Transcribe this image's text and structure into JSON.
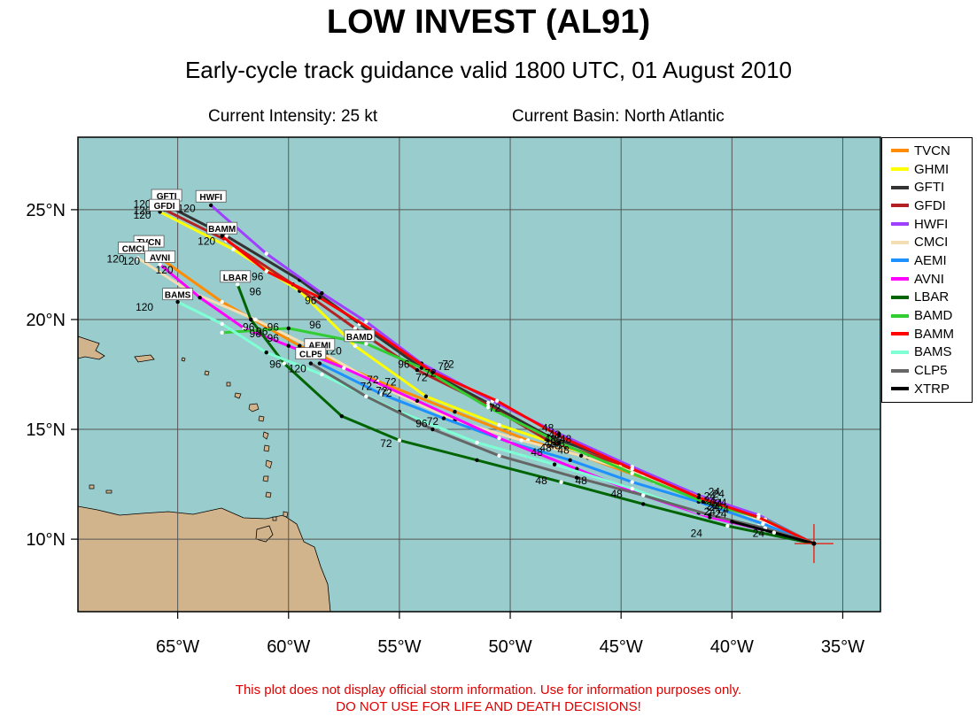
{
  "header": {
    "title": "LOW INVEST (AL91)",
    "subtitle": "Early-cycle track guidance valid 1800 UTC, 01 August 2010",
    "current_intensity": "Current Intensity: 25 kt",
    "current_basin": "Current Basin: North Atlantic"
  },
  "disclaimer": {
    "line1": "This plot does not display official storm information. Use for information purposes only.",
    "line2": "DO NOT USE FOR LIFE AND DEATH DECISIONS!"
  },
  "map": {
    "lon_range": [
      -69.5,
      -33.3
    ],
    "lat_range": [
      6.7,
      28.3
    ],
    "ocean_color": "#99cccc",
    "land_color": "#d2b48c",
    "x_ticks": [
      {
        "lon": -65,
        "label": "65°W"
      },
      {
        "lon": -60,
        "label": "60°W"
      },
      {
        "lon": -55,
        "label": "55°W"
      },
      {
        "lon": -50,
        "label": "50°W"
      },
      {
        "lon": -45,
        "label": "45°W"
      },
      {
        "lon": -40,
        "label": "40°W"
      },
      {
        "lon": -35,
        "label": "35°W"
      }
    ],
    "y_ticks": [
      {
        "lat": 10,
        "label": "10°N"
      },
      {
        "lat": 15,
        "label": "15°N"
      },
      {
        "lat": 20,
        "label": "20°N"
      },
      {
        "lat": 25,
        "label": "25°N"
      }
    ],
    "storm_position": {
      "lon": -36.3,
      "lat": 9.8
    }
  },
  "models": [
    {
      "name": "TVCN",
      "color": "#ff8c00",
      "label": "TVCN",
      "track": [
        [
          -36.3,
          9.8
        ],
        [
          -38.5,
          10.9
        ],
        [
          -41.0,
          11.6
        ],
        [
          -43.5,
          12.6
        ],
        [
          -46.5,
          13.7
        ],
        [
          -49.2,
          14.5
        ],
        [
          -52.5,
          15.8
        ],
        [
          -56.0,
          17.2
        ],
        [
          -59.5,
          18.8
        ],
        [
          -63.0,
          20.8
        ],
        [
          -65.8,
          22.8
        ]
      ],
      "hour_labels": [
        {
          "lon": -40.9,
          "lat": 11.35,
          "text": "24"
        },
        {
          "lon": -47.6,
          "lat": 13.9,
          "text": "48"
        },
        {
          "lon": -56.5,
          "lat": 16.8,
          "text": "72"
        },
        {
          "lon": -61.2,
          "lat": 19.3,
          "text": "96"
        },
        {
          "lon": -67.8,
          "lat": 22.6,
          "text": "120"
        }
      ]
    },
    {
      "name": "GHMI",
      "color": "#ffff00",
      "label": "GHMI",
      "track": [
        [
          -36.3,
          9.8
        ],
        [
          -38.8,
          11.0
        ],
        [
          -41.5,
          11.9
        ],
        [
          -44.5,
          13.2
        ],
        [
          -47.5,
          14.2
        ],
        [
          -50.5,
          15.2
        ],
        [
          -53.8,
          16.5
        ],
        [
          -57.0,
          18.8
        ],
        [
          -59.5,
          21.3
        ],
        [
          -62.5,
          23.2
        ],
        [
          -65.8,
          24.9
        ]
      ],
      "hour_labels": [
        {
          "lon": -40.4,
          "lat": 11.2,
          "text": "24"
        },
        {
          "lon": -48.2,
          "lat": 14.4,
          "text": "48"
        },
        {
          "lon": -55.4,
          "lat": 17.0,
          "text": "72"
        },
        {
          "lon": -61.5,
          "lat": 21.1,
          "text": "96"
        },
        {
          "lon": -66.6,
          "lat": 24.8,
          "text": "120"
        }
      ]
    },
    {
      "name": "GFTI",
      "color": "#333333",
      "label": "GFTI",
      "track": [
        [
          -36.3,
          9.8
        ],
        [
          -39.0,
          11.1
        ],
        [
          -41.8,
          12.1
        ],
        [
          -45.0,
          13.5
        ],
        [
          -48.3,
          14.7
        ],
        [
          -51.0,
          16.2
        ],
        [
          -54.0,
          17.8
        ],
        [
          -56.8,
          19.8
        ],
        [
          -59.5,
          21.8
        ],
        [
          -62.8,
          23.8
        ],
        [
          -65.5,
          25.2
        ]
      ],
      "hour_labels": [
        {
          "lon": -40.8,
          "lat": 12.0,
          "text": "24"
        },
        {
          "lon": -48.3,
          "lat": 14.9,
          "text": "48"
        },
        {
          "lon": -53.0,
          "lat": 17.7,
          "text": "72"
        },
        {
          "lon": -58.8,
          "lat": 19.6,
          "text": "96"
        },
        {
          "lon": -66.6,
          "lat": 25.1,
          "text": "120"
        }
      ]
    },
    {
      "name": "GFDI",
      "color": "#b22222",
      "label": "GFDI",
      "track": [
        [
          -36.3,
          9.8
        ],
        [
          -39.0,
          11.0
        ],
        [
          -41.8,
          12.0
        ],
        [
          -45.0,
          13.4
        ],
        [
          -48.3,
          14.5
        ],
        [
          -51.0,
          16.1
        ],
        [
          -54.2,
          17.7
        ],
        [
          -57.0,
          19.6
        ],
        [
          -59.8,
          21.6
        ],
        [
          -62.8,
          23.6
        ],
        [
          -65.6,
          25.0
        ]
      ],
      "hour_labels": [
        {
          "lon": -41.0,
          "lat": 11.8,
          "text": "24"
        },
        {
          "lon": -48.0,
          "lat": 14.6,
          "text": "48"
        },
        {
          "lon": -53.6,
          "lat": 17.4,
          "text": "72"
        },
        {
          "lon": -61.4,
          "lat": 21.8,
          "text": "96"
        },
        {
          "lon": -66.6,
          "lat": 24.6,
          "text": "120"
        }
      ]
    },
    {
      "name": "HWFI",
      "color": "#a040ff",
      "label": "HWFI",
      "track": [
        [
          -36.3,
          9.8
        ],
        [
          -38.8,
          11.1
        ],
        [
          -41.5,
          12.0
        ],
        [
          -44.5,
          13.3
        ],
        [
          -47.8,
          14.8
        ],
        [
          -50.8,
          16.3
        ],
        [
          -54.0,
          18.0
        ],
        [
          -56.5,
          19.9
        ],
        [
          -58.5,
          21.2
        ],
        [
          -61.0,
          23.0
        ],
        [
          -63.5,
          25.2
        ]
      ],
      "hour_labels": [
        {
          "lon": -40.6,
          "lat": 11.9,
          "text": "24"
        },
        {
          "lon": -47.5,
          "lat": 14.4,
          "text": "48"
        },
        {
          "lon": -52.8,
          "lat": 17.8,
          "text": "72"
        },
        {
          "lon": -54.8,
          "lat": 17.8,
          "text": "96"
        },
        {
          "lon": -64.6,
          "lat": 24.9,
          "text": "120"
        }
      ]
    },
    {
      "name": "CMCI",
      "color": "#f5deb3",
      "label": "CMCI",
      "track": [
        [
          -36.3,
          9.8
        ],
        [
          -38.5,
          10.8
        ],
        [
          -41.2,
          11.8
        ],
        [
          -44.0,
          12.9
        ],
        [
          -46.8,
          13.8
        ],
        [
          -49.5,
          14.5
        ],
        [
          -52.5,
          15.4
        ],
        [
          -55.5,
          16.8
        ],
        [
          -58.5,
          18.5
        ],
        [
          -61.5,
          20.0
        ],
        [
          -64.5,
          21.3
        ],
        [
          -66.8,
          22.8
        ]
      ],
      "hour_labels": [
        {
          "lon": -40.7,
          "lat": 11.5,
          "text": "24"
        },
        {
          "lon": -48.2,
          "lat": 14.2,
          "text": "48"
        },
        {
          "lon": -56.2,
          "lat": 17.1,
          "text": "72"
        },
        {
          "lon": -60.7,
          "lat": 19.5,
          "text": "96"
        },
        {
          "lon": -67.1,
          "lat": 22.5,
          "text": "120"
        }
      ]
    },
    {
      "name": "AEMI",
      "color": "#1e90ff",
      "label": "AEMI",
      "track": [
        [
          -36.3,
          9.8
        ],
        [
          -38.6,
          10.7
        ],
        [
          -41.5,
          11.7
        ],
        [
          -44.5,
          12.6
        ],
        [
          -47.3,
          13.6
        ],
        [
          -50.0,
          14.4
        ],
        [
          -53.0,
          15.5
        ],
        [
          -55.8,
          16.6
        ],
        [
          -58.6,
          18.0
        ]
      ],
      "hour_labels": [
        {
          "lon": -40.8,
          "lat": 11.3,
          "text": "24"
        },
        {
          "lon": -48.8,
          "lat": 13.8,
          "text": "48"
        },
        {
          "lon": -55.6,
          "lat": 16.5,
          "text": "72"
        }
      ]
    },
    {
      "name": "AVNI",
      "color": "#ff00ff",
      "label": "AVNI",
      "track": [
        [
          -36.3,
          9.8
        ],
        [
          -38.5,
          10.4
        ],
        [
          -41.0,
          11.0
        ],
        [
          -44.0,
          12.0
        ],
        [
          -47.0,
          13.2
        ],
        [
          -50.5,
          14.6
        ],
        [
          -54.2,
          16.3
        ],
        [
          -57.5,
          17.8
        ],
        [
          -60.0,
          18.8
        ],
        [
          -62.0,
          19.6
        ],
        [
          -64.0,
          21.0
        ],
        [
          -65.8,
          22.5
        ]
      ],
      "hour_labels": [
        {
          "lon": -41.0,
          "lat": 11.1,
          "text": "24"
        },
        {
          "lon": -48.4,
          "lat": 14.0,
          "text": "48"
        },
        {
          "lon": -55.8,
          "lat": 16.6,
          "text": "72"
        },
        {
          "lon": -61.8,
          "lat": 19.5,
          "text": "96"
        },
        {
          "lon": -65.6,
          "lat": 22.1,
          "text": "120"
        }
      ]
    },
    {
      "name": "LBAR",
      "color": "#006400",
      "label": "LBAR",
      "track": [
        [
          -36.3,
          9.8
        ],
        [
          -40.2,
          10.6
        ],
        [
          -44.0,
          11.6
        ],
        [
          -47.7,
          12.6
        ],
        [
          -51.5,
          13.6
        ],
        [
          -55.0,
          14.5
        ],
        [
          -57.6,
          15.6
        ],
        [
          -60.2,
          18.0
        ],
        [
          -61.7,
          20.0
        ],
        [
          -62.3,
          21.6
        ]
      ],
      "hour_labels": [
        {
          "lon": -41.6,
          "lat": 10.1,
          "text": "24"
        },
        {
          "lon": -48.6,
          "lat": 12.5,
          "text": "48"
        },
        {
          "lon": -55.6,
          "lat": 14.2,
          "text": "72"
        },
        {
          "lon": -60.6,
          "lat": 17.8,
          "text": "96"
        }
      ]
    },
    {
      "name": "BAMD",
      "color": "#32cd32",
      "label": "BAMD",
      "track": [
        [
          -36.3,
          9.8
        ],
        [
          -38.5,
          10.9
        ],
        [
          -41.3,
          11.7
        ],
        [
          -44.5,
          13.0
        ],
        [
          -47.8,
          14.4
        ],
        [
          -51.0,
          16.0
        ],
        [
          -54.0,
          17.8
        ],
        [
          -56.5,
          18.9
        ],
        [
          -60.0,
          19.6
        ],
        [
          -63.0,
          19.4
        ]
      ],
      "hour_labels": [
        {
          "lon": -41.0,
          "lat": 11.6,
          "text": "24"
        },
        {
          "lon": -48.0,
          "lat": 14.1,
          "text": "48"
        },
        {
          "lon": -50.7,
          "lat": 15.8,
          "text": "72"
        },
        {
          "lon": -60.7,
          "lat": 19.0,
          "text": "96"
        },
        {
          "lon": -58.0,
          "lat": 18.4,
          "text": "120"
        }
      ]
    },
    {
      "name": "BAMM",
      "color": "#ff0000",
      "label": "BAMM",
      "track": [
        [
          -36.3,
          9.8
        ],
        [
          -38.8,
          11.0
        ],
        [
          -41.5,
          11.9
        ],
        [
          -44.5,
          13.2
        ],
        [
          -47.8,
          14.7
        ],
        [
          -50.6,
          16.3
        ],
        [
          -53.5,
          17.6
        ],
        [
          -56.2,
          19.5
        ],
        [
          -58.6,
          21.0
        ],
        [
          -61.0,
          22.2
        ],
        [
          -63.0,
          23.8
        ]
      ],
      "hour_labels": [
        {
          "lon": -40.5,
          "lat": 11.5,
          "text": "24"
        },
        {
          "lon": -47.8,
          "lat": 14.2,
          "text": "48"
        },
        {
          "lon": -54.0,
          "lat": 17.2,
          "text": "72"
        },
        {
          "lon": -59.0,
          "lat": 20.7,
          "text": "96"
        },
        {
          "lon": -63.7,
          "lat": 23.4,
          "text": "120"
        }
      ]
    },
    {
      "name": "BAMS",
      "color": "#7fffd4",
      "label": "BAMS",
      "track": [
        [
          -36.3,
          9.8
        ],
        [
          -38.8,
          10.6
        ],
        [
          -41.5,
          11.2
        ],
        [
          -44.5,
          12.3
        ],
        [
          -48.0,
          13.4
        ],
        [
          -51.5,
          14.4
        ],
        [
          -55.0,
          15.8
        ],
        [
          -58.5,
          17.5
        ],
        [
          -61.0,
          18.5
        ],
        [
          -63.0,
          19.8
        ],
        [
          -65.0,
          20.8
        ]
      ],
      "hour_labels": [
        {
          "lon": -38.8,
          "lat": 10.1,
          "text": "24"
        },
        {
          "lon": -45.2,
          "lat": 11.9,
          "text": "48"
        },
        {
          "lon": -54.0,
          "lat": 15.1,
          "text": "96"
        },
        {
          "lon": -61.5,
          "lat": 19.2,
          "text": "96"
        },
        {
          "lon": -66.5,
          "lat": 20.4,
          "text": "120"
        }
      ]
    },
    {
      "name": "CLP5",
      "color": "#666666",
      "label": "CLP5",
      "track": [
        [
          -36.3,
          9.8
        ],
        [
          -38.5,
          10.5
        ],
        [
          -41.0,
          11.1
        ],
        [
          -44.0,
          12.0
        ],
        [
          -47.0,
          12.8
        ],
        [
          -50.5,
          13.8
        ],
        [
          -53.5,
          15.0
        ],
        [
          -56.5,
          16.5
        ],
        [
          -59.0,
          18.0
        ]
      ],
      "hour_labels": [
        {
          "lon": -40.5,
          "lat": 11.0,
          "text": "24"
        },
        {
          "lon": -46.8,
          "lat": 12.5,
          "text": "48"
        },
        {
          "lon": -53.5,
          "lat": 15.2,
          "text": "72"
        },
        {
          "lon": -59.6,
          "lat": 17.6,
          "text": "120"
        }
      ]
    },
    {
      "name": "XTRP",
      "color": "#000000",
      "label": "XTRP",
      "track": [
        [
          -36.3,
          9.8
        ],
        [
          -38.1,
          10.3
        ],
        [
          -40.0,
          10.8
        ]
      ],
      "hour_labels": []
    }
  ]
}
